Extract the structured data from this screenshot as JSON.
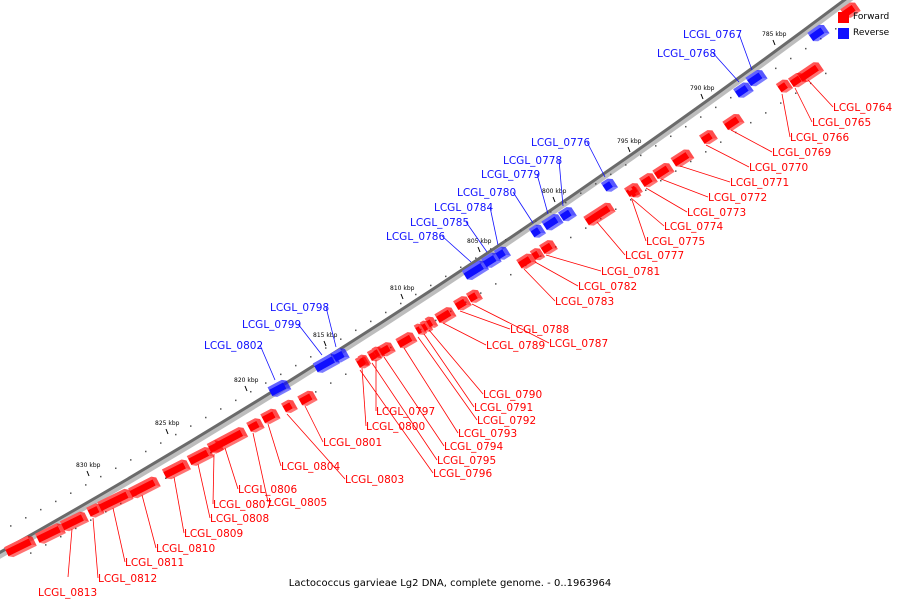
{
  "colors": {
    "forward": "#ff0000",
    "reverse": "#1010ff",
    "backbone": "#7a7a7a"
  },
  "legend": {
    "forward_label": "Forward",
    "reverse_label": "Reverse"
  },
  "caption": "Lactococcus garvieae Lg2 DNA, complete genome. - 0..1963964",
  "scale_labels": [
    "785 kbp",
    "790 kbp",
    "795 kbp",
    "800 kbp",
    "805 kbp",
    "810 kbp",
    "815 kbp",
    "820 kbp",
    "825 kbp",
    "830 kbp"
  ],
  "reverse_genes": [
    "LCGL_0767",
    "LCGL_0768",
    "LCGL_0776",
    "LCGL_0778",
    "LCGL_0779",
    "LCGL_0780",
    "LCGL_0784",
    "LCGL_0785",
    "LCGL_0786",
    "LCGL_0798",
    "LCGL_0799",
    "LCGL_0802"
  ],
  "forward_genes": [
    "LCGL_0764",
    "LCGL_0765",
    "LCGL_0766",
    "LCGL_0769",
    "LCGL_0770",
    "LCGL_0771",
    "LCGL_0772",
    "LCGL_0773",
    "LCGL_0774",
    "LCGL_0775",
    "LCGL_0777",
    "LCGL_0781",
    "LCGL_0782",
    "LCGL_0783",
    "LCGL_0787",
    "LCGL_0788",
    "LCGL_0789",
    "LCGL_0790",
    "LCGL_0791",
    "LCGL_0792",
    "LCGL_0793",
    "LCGL_0794",
    "LCGL_0795",
    "LCGL_0796",
    "LCGL_0797",
    "LCGL_0800",
    "LCGL_0801",
    "LCGL_0803",
    "LCGL_0804",
    "LCGL_0805",
    "LCGL_0806",
    "LCGL_0807",
    "LCGL_0808",
    "LCGL_0809",
    "LCGL_0810",
    "LCGL_0811",
    "LCGL_0812",
    "LCGL_0813"
  ]
}
